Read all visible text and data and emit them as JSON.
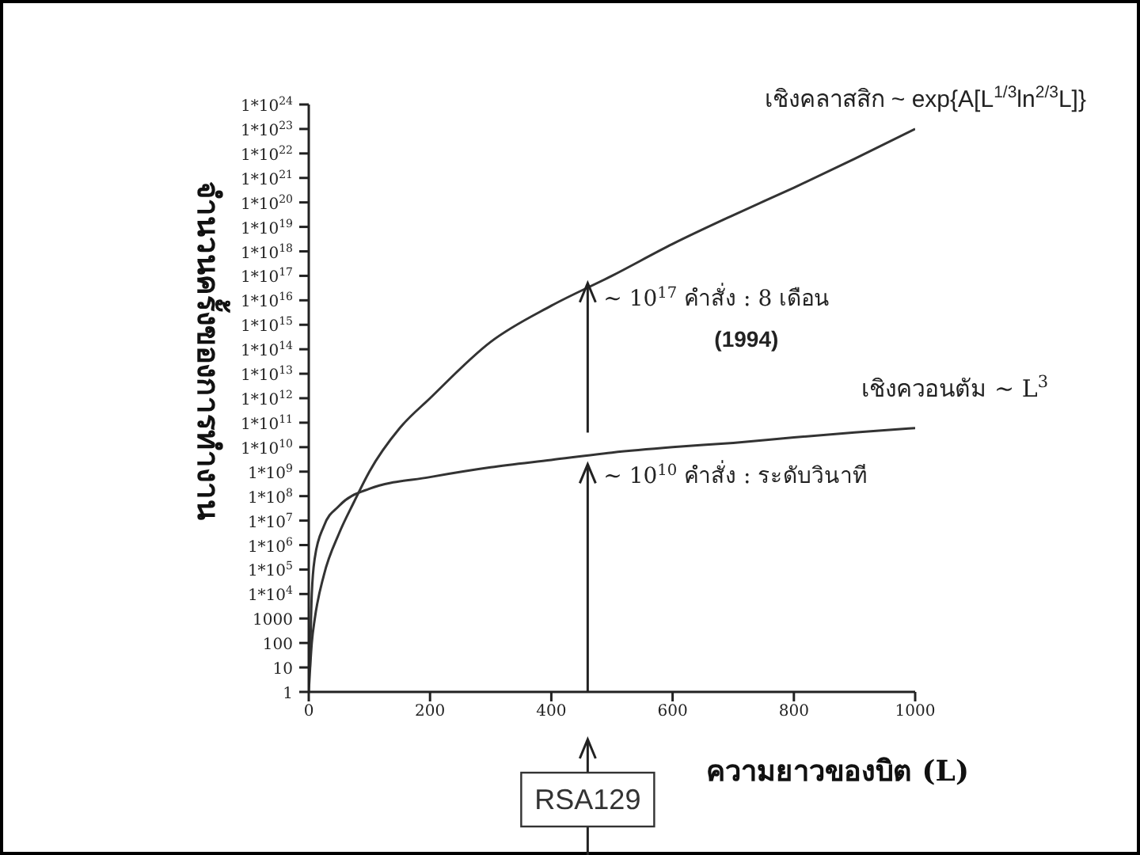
{
  "chart_data": {
    "type": "line",
    "xlabel": "ความยาวของบิต (L)",
    "ylabel": "จำนวนครั้งของการทำงาน",
    "series": [
      {
        "name": "เชิงคลาสสิก ~ exp{A[L$^{1/3}$ln$^{2/3}$L]}",
        "color": "#333333",
        "x": [
          0,
          5,
          10,
          25,
          50,
          75,
          100,
          150,
          200,
          300,
          400,
          500,
          600,
          700,
          800,
          900,
          1000
        ],
        "values": [
          1,
          100,
          1000,
          60000,
          3000000,
          60000000,
          1000000000,
          60000000000,
          1000000000000.0,
          200000000000000.0,
          6000000000000000.0,
          1e+17,
          2e+18,
          3e+19,
          4e+20,
          6e+21,
          1e+23
        ]
      },
      {
        "name": "เชิงควอนตัม ~ L$^{3}$",
        "color": "#333333",
        "x": [
          2,
          5,
          10,
          25,
          50,
          100,
          200,
          300,
          400,
          500,
          600,
          700,
          800,
          900,
          1000
        ],
        "values": [
          10,
          10000,
          300000,
          6000000,
          40000000,
          200000000,
          600000000,
          1500000000,
          3000000000,
          6000000000,
          10000000000,
          15000000000,
          25000000000,
          40000000000,
          60000000000
        ]
      }
    ],
    "annotations": [
      {
        "text": "~ 10$^{17}$ คำสั่ง : 8 เดือน",
        "x": 460,
        "y": 5e+16
      },
      "(1994)",
      {
        "text": "~ 10$^{10}$ คำสั่ง : ระดับวินาที",
        "x": 460,
        "y": 2000000000.0
      },
      "RSA129"
    ],
    "xlim": [
      0,
      1000
    ],
    "xticks": [
      0,
      200,
      400,
      600,
      800,
      1000
    ],
    "ylim": [
      1,
      1e+24
    ],
    "log": "y",
    "yticks": [
      1,
      10,
      100,
      1000,
      {
        "value": 10000.0,
        "label": "1*10$^{4}$"
      },
      {
        "value": 100000.0,
        "label": "1*10$^{5}$"
      },
      {
        "value": 1000000.0,
        "label": "1*10$^{6}$"
      },
      {
        "value": 10000000.0,
        "label": "1*10$^{7}$"
      },
      {
        "value": 100000000.0,
        "label": "1*10$^{8}$"
      },
      {
        "value": 1000000000.0,
        "label": "1*10$^{9}$"
      },
      {
        "value": 10000000000.0,
        "label": "1*10$^{10}$"
      },
      {
        "value": 100000000000.0,
        "label": "1*10$^{11}$"
      },
      {
        "value": 1000000000000.0,
        "label": "1*10$^{12}$"
      },
      {
        "value": 10000000000000.0,
        "label": "1*10$^{13}$"
      },
      {
        "value": 100000000000000.0,
        "label": "1*10$^{14}$"
      },
      {
        "value": 1000000000000000.0,
        "label": "1*10$^{15}$"
      },
      {
        "value": 1e+16,
        "label": "1*10$^{16}$"
      },
      {
        "value": 1e+17,
        "label": "1*10$^{17}$"
      },
      {
        "value": 1e+18,
        "label": "1*10$^{18}$"
      },
      {
        "value": 1e+19,
        "label": "1*10$^{19}$"
      },
      {
        "value": 1e+20,
        "label": "1*10$^{20}$"
      },
      {
        "value": 1e+21,
        "label": "1*10$^{21}$"
      },
      {
        "value": 1e+22,
        "label": "1*10$^{22}$"
      },
      {
        "value": 1e+23,
        "label": "1*10$^{23}$"
      },
      {
        "value": 1e+24,
        "label": "1*10$^{24}$"
      }
    ],
    "grid": false,
    "legend": false,
    "marker": "none",
    "line_style": "solid"
  }
}
